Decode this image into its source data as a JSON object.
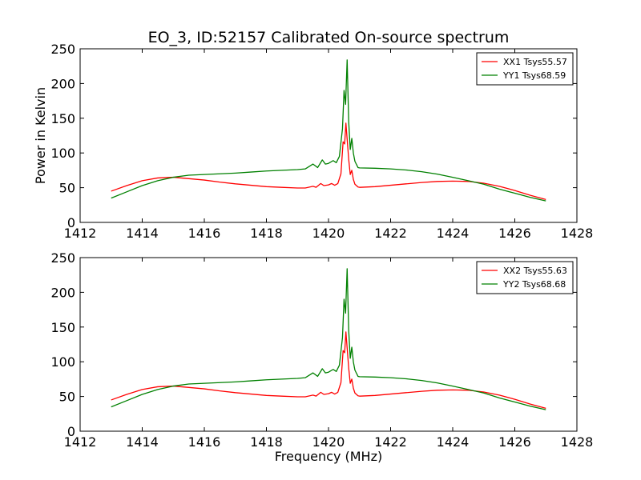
{
  "figure": {
    "title": "EO_3, ID:52157 Calibrated On-source spectrum"
  },
  "chart_data": [
    {
      "type": "line",
      "title": "EO_3, ID:52157 Calibrated On-source spectrum",
      "xlabel": "",
      "ylabel": "Power in Kelvin",
      "xlim": [
        1412,
        1428
      ],
      "ylim": [
        0,
        250
      ],
      "x_ticks": [
        "1412",
        "1414",
        "1416",
        "1418",
        "1420",
        "1422",
        "1424",
        "1426",
        "1428"
      ],
      "y_ticks": [
        "0",
        "50",
        "100",
        "150",
        "200",
        "250"
      ],
      "grid": false,
      "legend_position": "top-right",
      "series": [
        {
          "name": "XX1 Tsys55.57",
          "color": "#ff0000",
          "x": [
            1413.0,
            1413.5,
            1414.0,
            1414.5,
            1415.0,
            1415.5,
            1416.0,
            1416.5,
            1417.0,
            1417.5,
            1418.0,
            1418.5,
            1419.0,
            1419.25,
            1419.5,
            1419.6,
            1419.75,
            1419.85,
            1420.0,
            1420.1,
            1420.2,
            1420.3,
            1420.4,
            1420.47,
            1420.52,
            1420.56,
            1420.6,
            1420.65,
            1420.7,
            1420.75,
            1420.8,
            1420.85,
            1420.95,
            1421.0,
            1421.5,
            1422.0,
            1422.5,
            1423.0,
            1423.5,
            1424.0,
            1424.5,
            1425.0,
            1425.5,
            1426.0,
            1426.5,
            1427.0
          ],
          "y": [
            45,
            53,
            60,
            64,
            65,
            63,
            61,
            58,
            55.5,
            53.5,
            51.5,
            50.5,
            49.5,
            49.5,
            52,
            50.5,
            56,
            53,
            54,
            56,
            53.5,
            56,
            70,
            116,
            113,
            143,
            120,
            91,
            69,
            75,
            62,
            55,
            51,
            50.5,
            51.5,
            53.5,
            55.5,
            57.5,
            59,
            59.5,
            59,
            56.5,
            52,
            46,
            39,
            33
          ]
        },
        {
          "name": "YY1 Tsys68.59",
          "color": "#008000",
          "x": [
            1413.0,
            1413.5,
            1414.0,
            1414.5,
            1415.0,
            1415.5,
            1416.0,
            1416.5,
            1417.0,
            1417.5,
            1418.0,
            1418.5,
            1419.0,
            1419.25,
            1419.5,
            1419.65,
            1419.8,
            1419.9,
            1420.0,
            1420.15,
            1420.25,
            1420.35,
            1420.45,
            1420.5,
            1420.55,
            1420.6,
            1420.65,
            1420.7,
            1420.75,
            1420.8,
            1420.85,
            1420.95,
            1421.0,
            1421.5,
            1422.0,
            1422.5,
            1423.0,
            1423.5,
            1424.0,
            1424.5,
            1425.0,
            1425.5,
            1426.0,
            1426.5,
            1427.0
          ],
          "y": [
            35,
            44,
            53,
            60,
            65,
            68,
            69,
            70,
            71,
            72.5,
            74,
            75,
            76,
            77,
            84,
            79,
            90,
            84,
            85,
            89,
            86,
            95,
            135,
            190,
            170,
            234,
            145,
            105,
            121,
            100,
            88,
            79,
            78.5,
            78,
            77,
            75.5,
            73,
            69.5,
            65,
            60,
            55,
            48,
            42,
            36,
            31
          ]
        }
      ]
    },
    {
      "type": "line",
      "title": "",
      "xlabel": "Frequency (MHz)",
      "ylabel": "",
      "xlim": [
        1412,
        1428
      ],
      "ylim": [
        0,
        250
      ],
      "x_ticks": [
        "1412",
        "1414",
        "1416",
        "1418",
        "1420",
        "1422",
        "1424",
        "1426",
        "1428"
      ],
      "y_ticks": [
        "0",
        "50",
        "100",
        "150",
        "200",
        "250"
      ],
      "grid": false,
      "legend_position": "top-right",
      "series": [
        {
          "name": "XX2 Tsys55.63",
          "color": "#ff0000",
          "x": [
            1413.0,
            1413.5,
            1414.0,
            1414.5,
            1415.0,
            1415.5,
            1416.0,
            1416.5,
            1417.0,
            1417.5,
            1418.0,
            1418.5,
            1419.0,
            1419.25,
            1419.5,
            1419.6,
            1419.75,
            1419.85,
            1420.0,
            1420.1,
            1420.2,
            1420.3,
            1420.4,
            1420.47,
            1420.52,
            1420.56,
            1420.6,
            1420.65,
            1420.7,
            1420.75,
            1420.8,
            1420.85,
            1420.95,
            1421.0,
            1421.5,
            1422.0,
            1422.5,
            1423.0,
            1423.5,
            1424.0,
            1424.5,
            1425.0,
            1425.5,
            1426.0,
            1426.5,
            1427.0
          ],
          "y": [
            45,
            53,
            60,
            64,
            65,
            63,
            61,
            58,
            55.5,
            53.5,
            51.5,
            50.5,
            49.5,
            49.5,
            52,
            50.5,
            56,
            53,
            54,
            56,
            53.5,
            56,
            70,
            116,
            113,
            143,
            120,
            91,
            69,
            75,
            62,
            55,
            51,
            50.5,
            51.5,
            53.5,
            55.5,
            57.5,
            59,
            59.5,
            59,
            56.5,
            52,
            46,
            39,
            33
          ]
        },
        {
          "name": "YY2 Tsys68.68",
          "color": "#008000",
          "x": [
            1413.0,
            1413.5,
            1414.0,
            1414.5,
            1415.0,
            1415.5,
            1416.0,
            1416.5,
            1417.0,
            1417.5,
            1418.0,
            1418.5,
            1419.0,
            1419.25,
            1419.5,
            1419.65,
            1419.8,
            1419.9,
            1420.0,
            1420.15,
            1420.25,
            1420.35,
            1420.45,
            1420.5,
            1420.55,
            1420.6,
            1420.65,
            1420.7,
            1420.75,
            1420.8,
            1420.85,
            1420.95,
            1421.0,
            1421.5,
            1422.0,
            1422.5,
            1423.0,
            1423.5,
            1424.0,
            1424.5,
            1425.0,
            1425.5,
            1426.0,
            1426.5,
            1427.0
          ],
          "y": [
            35,
            44,
            53,
            60,
            65,
            68,
            69,
            70,
            71,
            72.5,
            74,
            75,
            76,
            77,
            84,
            79,
            90,
            84,
            85,
            89,
            86,
            95,
            135,
            190,
            170,
            234,
            145,
            105,
            121,
            100,
            88,
            79,
            78.5,
            78,
            77,
            75.5,
            73,
            69.5,
            65,
            60,
            55,
            48,
            42,
            36,
            31
          ]
        }
      ]
    }
  ]
}
